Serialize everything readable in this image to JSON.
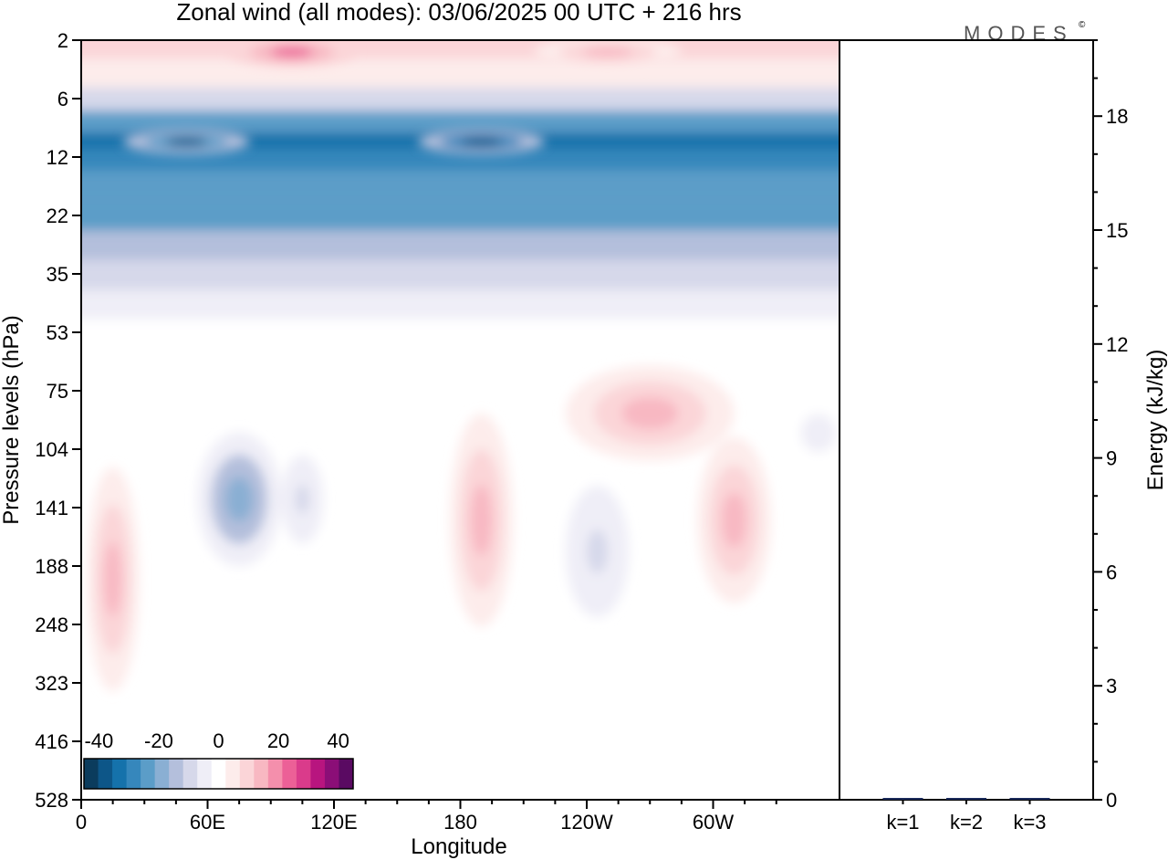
{
  "title": "Zonal wind (all modes):  03/06/2025  00 UTC  + 216 hrs",
  "logo": "MODES",
  "logo_mark": "©",
  "chart_data": [
    {
      "type": "heatmap",
      "variable": "Zonal wind",
      "xlabel": "Longitude",
      "ylabel": "Pressure levels (hPa)",
      "x_ticks": [
        "0",
        "60E",
        "120E",
        "180",
        "120W",
        "60W"
      ],
      "x_tick_deg": [
        0,
        60,
        120,
        180,
        240,
        300
      ],
      "x_range_deg": [
        0,
        360
      ],
      "y_ticks": [
        2,
        6,
        12,
        22,
        35,
        53,
        75,
        104,
        141,
        188,
        248,
        323,
        416,
        528
      ],
      "y_ticks_inverted": true,
      "colorbar": {
        "tick_labels": [
          "-40",
          "-20",
          "0",
          "20",
          "40"
        ],
        "tick_values": [
          -40,
          -20,
          0,
          20,
          40
        ],
        "range": [
          -45,
          45
        ],
        "colors": [
          "#0b3c5d",
          "#0d5688",
          "#1572ab",
          "#3687bc",
          "#5b9dc8",
          "#8aafd3",
          "#b4bfdc",
          "#d6d8ea",
          "#efeef7",
          "#ffffff",
          "#fdeceb",
          "#fbd5d8",
          "#f8b8c2",
          "#f48fac",
          "#ec6097",
          "#da3b8b",
          "#b8157f",
          "#8b0e77",
          "#5a0a62"
        ]
      },
      "bands": [
        {
          "level": 2,
          "wind": 8
        },
        {
          "level": 4,
          "wind": 3
        },
        {
          "level": 6,
          "wind": -8
        },
        {
          "level": 8,
          "wind": -25
        },
        {
          "level": 10,
          "wind": -33
        },
        {
          "level": 12,
          "wind": -30
        },
        {
          "level": 16,
          "wind": -26
        },
        {
          "level": 22,
          "wind": -22
        },
        {
          "level": 28,
          "wind": -15
        },
        {
          "level": 35,
          "wind": -8
        },
        {
          "level": 44,
          "wind": -3
        },
        {
          "level": 53,
          "wind": 1
        },
        {
          "level": 75,
          "wind": 2
        },
        {
          "level": 104,
          "wind": 2
        },
        {
          "level": 141,
          "wind": 2
        },
        {
          "level": 188,
          "wind": 1
        },
        {
          "level": 248,
          "wind": 1
        },
        {
          "level": 323,
          "wind": 1
        },
        {
          "level": 416,
          "wind": 0
        },
        {
          "level": 528,
          "wind": 0
        }
      ],
      "features": [
        {
          "lon": 100,
          "level": 2.5,
          "lon_width": 60,
          "level_width": 2,
          "wind": 22
        },
        {
          "lon": 250,
          "level": 2.5,
          "lon_width": 70,
          "level_width": 2,
          "wind": 12
        },
        {
          "lon": 50,
          "level": 10,
          "lon_width": 60,
          "level_width": 3,
          "wind": -38
        },
        {
          "lon": 190,
          "level": 10,
          "lon_width": 60,
          "level_width": 3,
          "wind": -40
        },
        {
          "lon": 75,
          "level": 135,
          "lon_width": 40,
          "level_width": 90,
          "wind": -20
        },
        {
          "lon": 105,
          "level": 135,
          "lon_width": 20,
          "level_width": 60,
          "wind": -10
        },
        {
          "lon": 15,
          "level": 200,
          "lon_width": 25,
          "level_width": 200,
          "wind": 12
        },
        {
          "lon": 190,
          "level": 150,
          "lon_width": 30,
          "level_width": 150,
          "wind": 12
        },
        {
          "lon": 245,
          "level": 175,
          "lon_width": 30,
          "level_width": 110,
          "wind": -10
        },
        {
          "lon": 270,
          "level": 85,
          "lon_width": 80,
          "level_width": 45,
          "wind": 12
        },
        {
          "lon": 310,
          "level": 150,
          "lon_width": 35,
          "level_width": 120,
          "wind": 15
        },
        {
          "lon": 350,
          "level": 95,
          "lon_width": 25,
          "level_width": 30,
          "wind": -5
        }
      ]
    },
    {
      "type": "bar",
      "ylabel": "Energy (kJ/kg)",
      "ylim": [
        0,
        20
      ],
      "y_ticks": [
        0,
        3,
        6,
        9,
        12,
        15,
        18
      ],
      "categories": [
        "k=1",
        "k=2",
        "k=3"
      ],
      "values": [
        0.03,
        0.02,
        0.01
      ]
    }
  ]
}
